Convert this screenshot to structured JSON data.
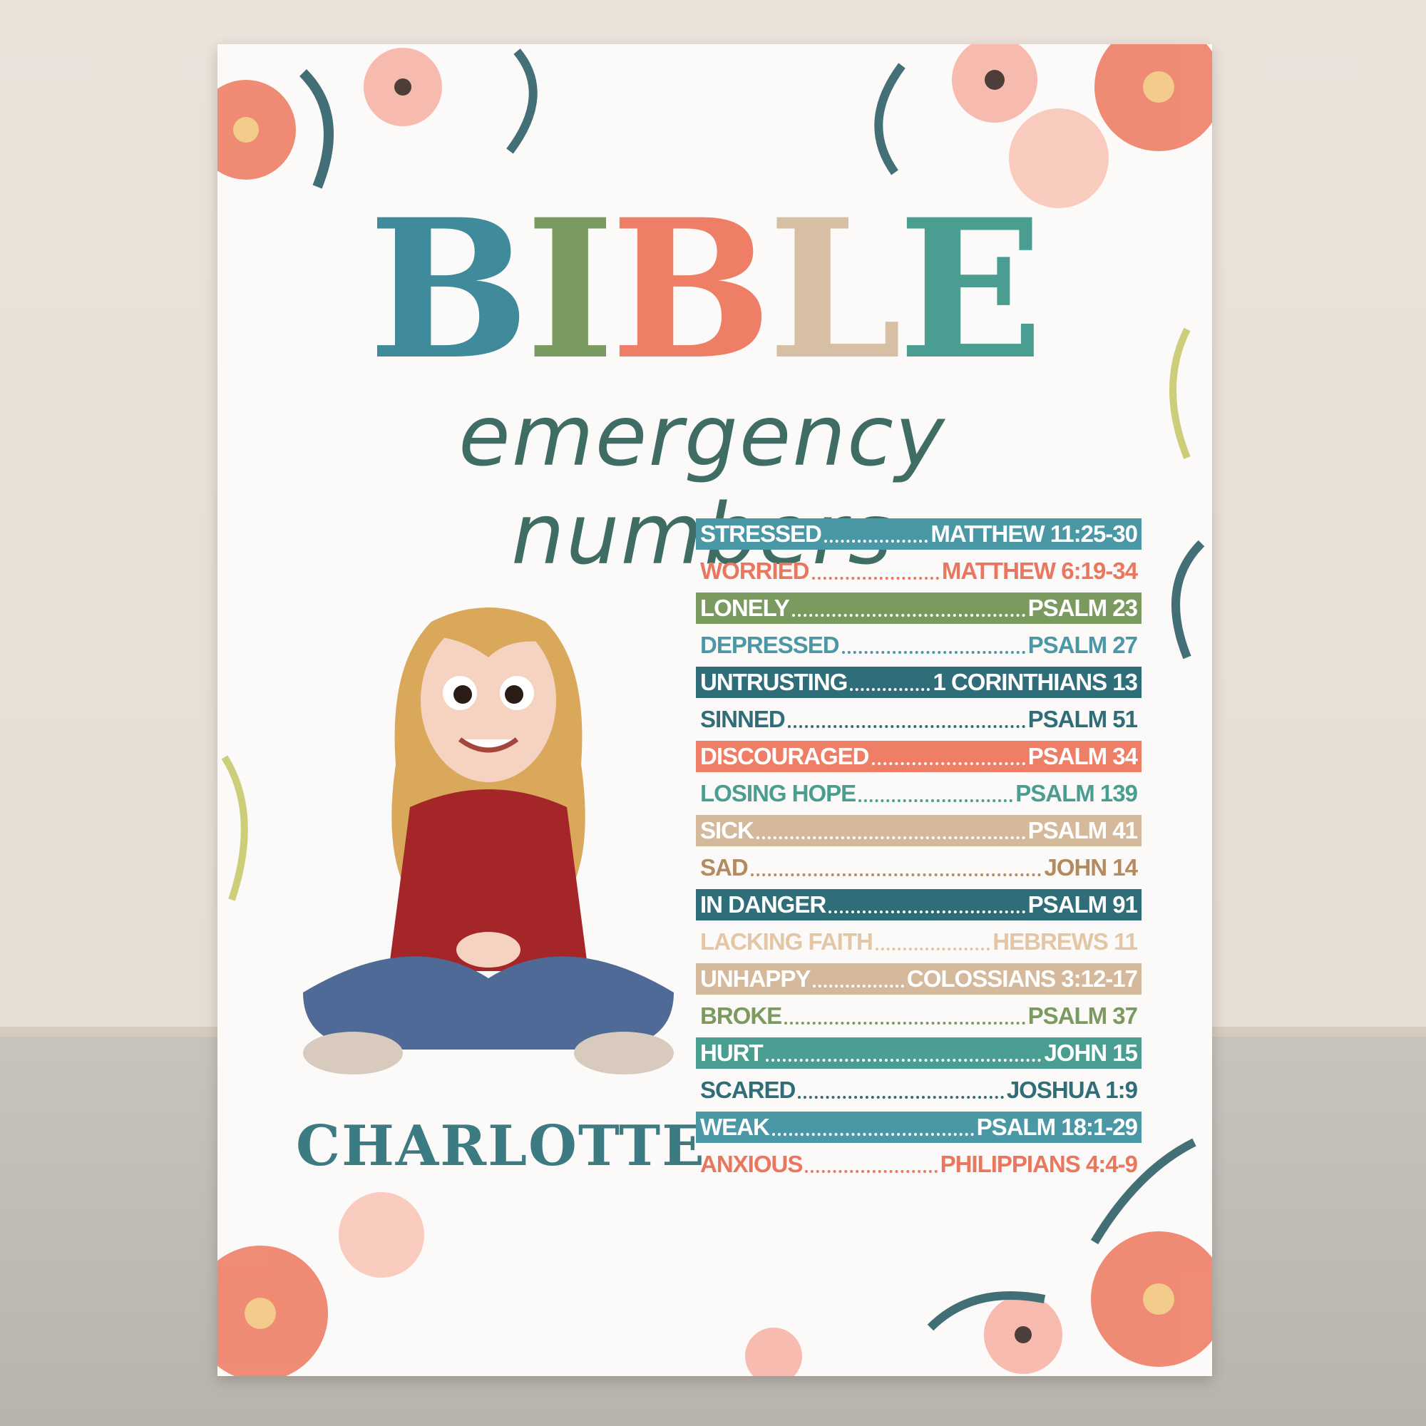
{
  "title": "BIBLE",
  "subtitle": "emergency numbers",
  "name": "CHARLOTTE",
  "entries": [
    {
      "feeling": "STRESSED",
      "verse": "MATTHEW 11:25-30"
    },
    {
      "feeling": "WORRIED",
      "verse": "MATTHEW 6:19-34"
    },
    {
      "feeling": "LONELY",
      "verse": "PSALM 23"
    },
    {
      "feeling": "DEPRESSED",
      "verse": "PSALM 27"
    },
    {
      "feeling": "UNTRUSTING",
      "verse": "1 CORINTHIANS 13"
    },
    {
      "feeling": "SINNED",
      "verse": "PSALM 51"
    },
    {
      "feeling": "DISCOURAGED",
      "verse": "PSALM 34"
    },
    {
      "feeling": "LOSING HOPE",
      "verse": "PSALM 139"
    },
    {
      "feeling": "SICK",
      "verse": "PSALM 41"
    },
    {
      "feeling": "SAD",
      "verse": "JOHN 14"
    },
    {
      "feeling": "IN DANGER",
      "verse": "PSALM 91"
    },
    {
      "feeling": "LACKING FAITH",
      "verse": "HEBREWS 11"
    },
    {
      "feeling": "UNHAPPY",
      "verse": "COLOSSIANS 3:12-17"
    },
    {
      "feeling": "BROKE",
      "verse": "PSALM 37"
    },
    {
      "feeling": "HURT",
      "verse": "JOHN 15"
    },
    {
      "feeling": "SCARED",
      "verse": "JOSHUA 1:9"
    },
    {
      "feeling": "WEAK",
      "verse": "PSALM 18:1-29"
    },
    {
      "feeling": "ANXIOUS",
      "verse": "PHILIPPIANS 4:4-9"
    }
  ]
}
